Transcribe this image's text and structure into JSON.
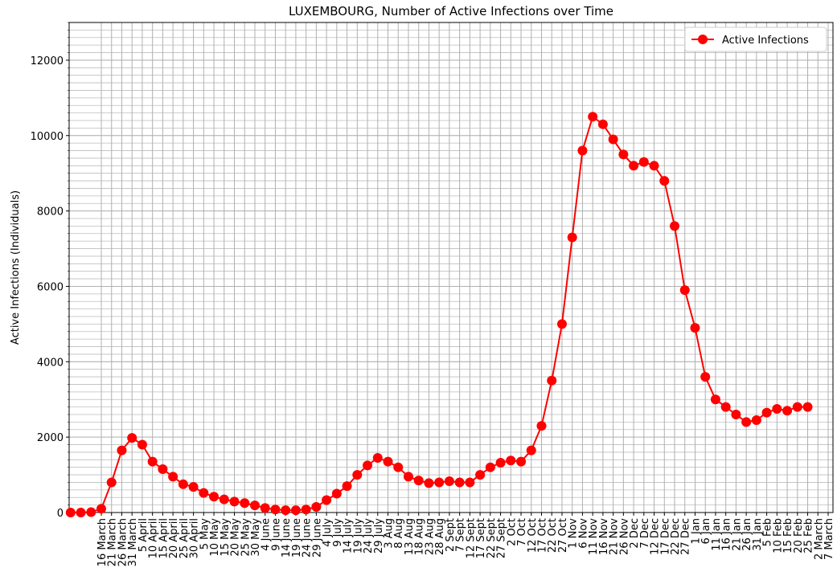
{
  "chart_data": {
    "type": "line",
    "title": "LUXEMBOURG, Number of Active Infections over Time",
    "ylabel": "Active Infections (Individuals)",
    "categories": [
      null,
      null,
      null,
      "16 March",
      "21 March",
      "26 March",
      "31 March",
      "5 April",
      "10 April",
      "15 April",
      "20 April",
      "25 April",
      "30 April",
      "5 May",
      "10 May",
      "15 May",
      "20 May",
      "25 May",
      "30 May",
      "4 June",
      "9 June",
      "14 June",
      "19 June",
      "24 June",
      "29 June",
      "4 July",
      "9 July",
      "14 July",
      "19 July",
      "24 July",
      "29 July",
      "3 Aug",
      "8 Aug",
      "13 Aug",
      "18 Aug",
      "23 Aug",
      "28 Aug",
      "2 Sept",
      "7 Sept",
      "12 Sept",
      "17 Sept",
      "22 Sept",
      "27 Sept",
      "2 Oct",
      "7 Oct",
      "12 Oct",
      "17 Oct",
      "22 Oct",
      "27 Oct",
      "1 Nov",
      "6 Nov",
      "11 Nov",
      "16 Nov",
      "21 Nov",
      "26 Nov",
      "2 Dec",
      "7 Dec",
      "12 Dec",
      "17 Dec",
      "22 Dec",
      "27 Dec",
      "1 Jan",
      "6 Jan",
      "11 Jan",
      "16 Jan",
      "21 Jan",
      "26 Jan",
      "31 Jan",
      "5 Feb",
      "10 Feb",
      "15 Feb",
      "20 Feb",
      "25 Feb",
      "2 March",
      "7 March"
    ],
    "series": [
      {
        "name": "Active Infections",
        "color": "#ff0000",
        "values": [
          0,
          0,
          10,
          100,
          800,
          1650,
          1980,
          1800,
          1350,
          1150,
          950,
          750,
          680,
          520,
          420,
          350,
          290,
          250,
          190,
          120,
          80,
          60,
          60,
          80,
          150,
          330,
          500,
          700,
          1000,
          1250,
          1450,
          1350,
          1200,
          950,
          850,
          780,
          800,
          830,
          800,
          800,
          1000,
          1200,
          1320,
          1380,
          1350,
          1650,
          2300,
          3500,
          5000,
          7300,
          9600,
          10500,
          10300,
          9900,
          9500,
          9200,
          9300,
          9200,
          8800,
          7600,
          5900,
          4900,
          3600,
          3000,
          2800,
          2600,
          2400,
          2450,
          2650,
          2750,
          2700,
          2800,
          2800,
          null,
          null
        ]
      }
    ],
    "ylim": [
      0,
      13000
    ],
    "yticks": [
      0,
      2000,
      4000,
      6000,
      8000,
      10000,
      12000
    ],
    "grid": true,
    "minor_grid": true,
    "legend": "upper right"
  }
}
